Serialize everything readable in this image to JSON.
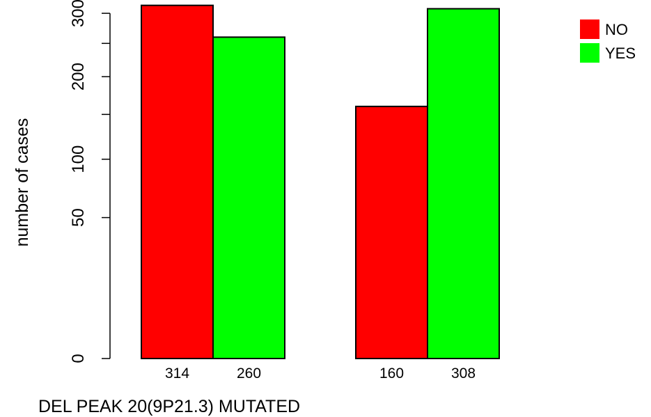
{
  "chart_data": {
    "type": "bar",
    "xlabel": "DEL PEAK 20(9P21.3) MUTATED",
    "ylabel": "number of cases",
    "y_scale": "sqrt",
    "ylim": [
      0,
      314
    ],
    "yticks": [
      0,
      50,
      100,
      200,
      300
    ],
    "ytick_labels": [
      "0",
      "50",
      "100",
      "200",
      "300"
    ],
    "groups": [
      {
        "bars": [
          {
            "series": "NO",
            "value": 314,
            "label": "314"
          },
          {
            "series": "YES",
            "value": 260,
            "label": "260"
          }
        ]
      },
      {
        "bars": [
          {
            "series": "NO",
            "value": 160,
            "label": "160"
          },
          {
            "series": "YES",
            "value": 308,
            "label": "308"
          }
        ]
      }
    ],
    "series": [
      {
        "name": "NO",
        "color": "#ff0000"
      },
      {
        "name": "YES",
        "color": "#00ff00"
      }
    ],
    "legend": {
      "position": "top-right",
      "entries": [
        "NO",
        "YES"
      ]
    },
    "grid": false
  }
}
